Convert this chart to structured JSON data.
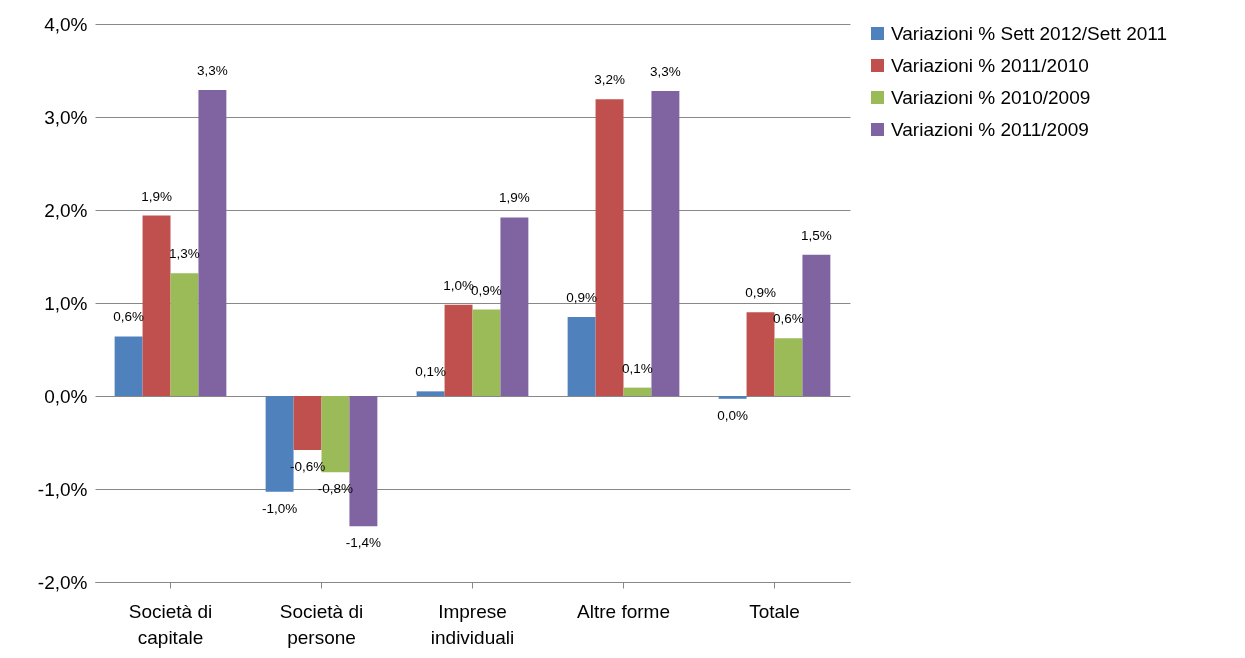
{
  "chart_data": {
    "type": "bar",
    "categories": [
      "Società di capitale",
      "Società di persone",
      "Imprese individuali",
      "Altre forme",
      "Totale"
    ],
    "series": [
      {
        "name": "Variazioni % Sett 2012/Sett 2011",
        "color": "#4f81bd",
        "values": [
          0.64,
          -1.03,
          0.05,
          0.85,
          -0.03
        ],
        "value_labels": [
          "0,6%",
          "-1,0%",
          "0,1%",
          "0,9%",
          "0,0%"
        ]
      },
      {
        "name": "Variazioni % 2011/2010",
        "color": "#c0504d",
        "values": [
          1.94,
          -0.58,
          0.98,
          3.19,
          0.9
        ],
        "value_labels": [
          "1,9%",
          "-0,6%",
          "1,0%",
          "3,2%",
          "0,9%"
        ]
      },
      {
        "name": "Variazioni % 2010/2009",
        "color": "#9bbb59",
        "values": [
          1.32,
          -0.82,
          0.93,
          0.09,
          0.62
        ],
        "value_labels": [
          "1,3%",
          "-0,8%",
          "0,9%",
          "0,1%",
          "0,6%"
        ]
      },
      {
        "name": "Variazioni % 2011/2009",
        "color": "#8064a2",
        "values": [
          3.29,
          -1.4,
          1.92,
          3.28,
          1.52
        ],
        "value_labels": [
          "3,3%",
          "-1,4%",
          "1,9%",
          "3,3%",
          "1,5%"
        ]
      }
    ],
    "ylim": [
      -2,
      4
    ],
    "yticks": [
      {
        "value": -2,
        "label": "-2,0%"
      },
      {
        "value": -1,
        "label": "-1,0%"
      },
      {
        "value": 0,
        "label": "0,0%"
      },
      {
        "value": 1,
        "label": "1,0%"
      },
      {
        "value": 2,
        "label": "2,0%"
      },
      {
        "value": 3,
        "label": "3,0%"
      },
      {
        "value": 4,
        "label": "4,0%"
      }
    ],
    "grid": "y",
    "legend": "right"
  }
}
